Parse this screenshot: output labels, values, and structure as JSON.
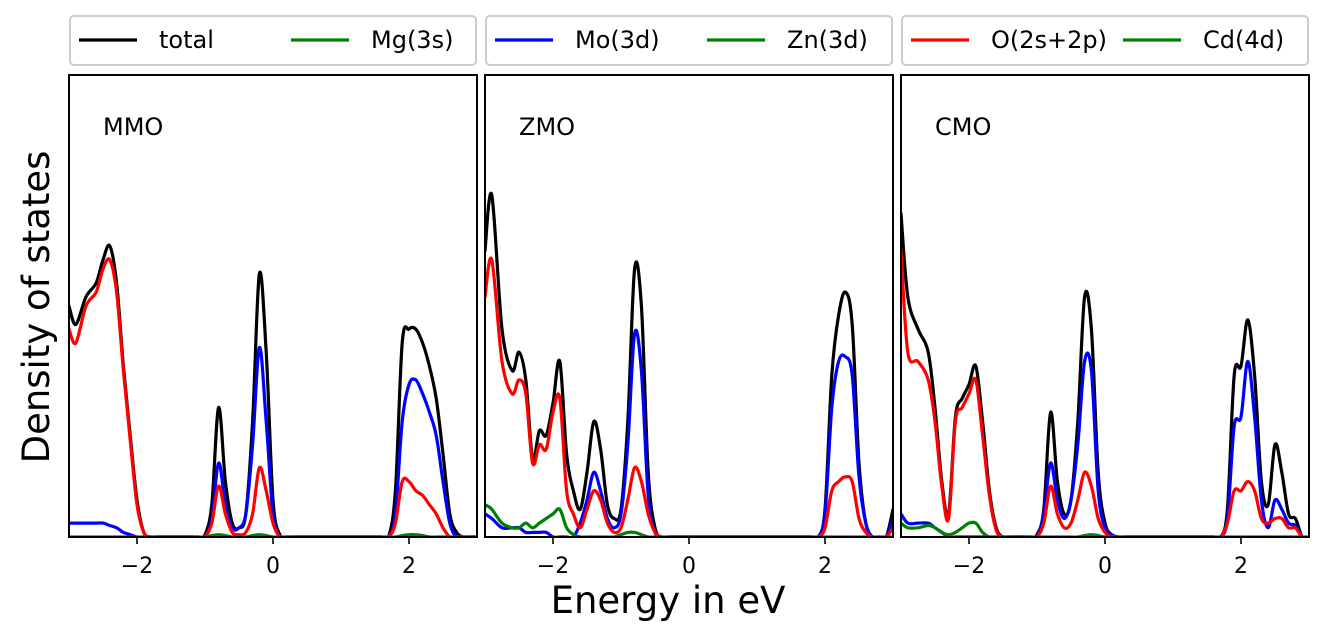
{
  "chart_data": {
    "type": "line",
    "xlabel": "Energy in eV",
    "ylabel": "Density of states",
    "xlim": [
      -3,
      3
    ],
    "ylim": [
      0,
      1
    ],
    "xticks": [
      -2,
      0,
      2
    ],
    "x_tick_labels": [
      "−2",
      "0",
      "2"
    ],
    "x": [
      -3.0,
      -2.9,
      -2.75,
      -2.6,
      -2.5,
      -2.4,
      -2.3,
      -2.2,
      -2.1,
      -2.0,
      -1.9,
      -1.8,
      -1.7,
      -1.6,
      -1.5,
      -1.4,
      -1.3,
      -1.2,
      -1.1,
      -1.0,
      -0.9,
      -0.8,
      -0.7,
      -0.6,
      -0.5,
      -0.4,
      -0.3,
      -0.2,
      -0.1,
      0.0,
      0.1,
      0.2,
      0.3,
      0.4,
      0.5,
      0.6,
      0.7,
      0.8,
      0.9,
      1.0,
      1.1,
      1.2,
      1.3,
      1.4,
      1.5,
      1.6,
      1.7,
      1.8,
      1.9,
      2.0,
      2.1,
      2.2,
      2.3,
      2.4,
      2.5,
      2.6,
      2.7,
      2.8,
      2.9,
      3.0
    ],
    "panels": [
      {
        "label": "MMO",
        "legend": [
          "total",
          "Mg(3s)"
        ],
        "series": [
          {
            "name": "total",
            "color": "#000000",
            "values": [
              0.5,
              0.46,
              0.52,
              0.55,
              0.6,
              0.63,
              0.55,
              0.37,
              0.22,
              0.08,
              0.01,
              0.0,
              0.0,
              0.0,
              0.0,
              0.0,
              0.0,
              0.0,
              0.0,
              0.005,
              0.07,
              0.28,
              0.12,
              0.03,
              0.02,
              0.05,
              0.25,
              0.57,
              0.4,
              0.08,
              0.005,
              0.0,
              0.0,
              0.0,
              0.0,
              0.0,
              0.0,
              0.0,
              0.0,
              0.0,
              0.0,
              0.0,
              0.0,
              0.0,
              0.0,
              0.0,
              0.0,
              0.1,
              0.42,
              0.45,
              0.45,
              0.42,
              0.37,
              0.3,
              0.18,
              0.05,
              0.01,
              0.0,
              0.0,
              0.0
            ]
          },
          {
            "name": "Mo(3d)",
            "color": "#0000ff",
            "values": [
              0.03,
              0.03,
              0.03,
              0.03,
              0.03,
              0.025,
              0.02,
              0.01,
              0.005,
              0.0,
              0.0,
              0.0,
              0.0,
              0.0,
              0.0,
              0.0,
              0.0,
              0.0,
              0.0,
              0.0,
              0.04,
              0.16,
              0.07,
              0.02,
              0.02,
              0.05,
              0.2,
              0.41,
              0.25,
              0.05,
              0.0,
              0.0,
              0.0,
              0.0,
              0.0,
              0.0,
              0.0,
              0.0,
              0.0,
              0.0,
              0.0,
              0.0,
              0.0,
              0.0,
              0.0,
              0.0,
              0.0,
              0.05,
              0.25,
              0.33,
              0.34,
              0.31,
              0.27,
              0.22,
              0.12,
              0.03,
              0.0,
              0.0,
              0.0,
              0.0
            ]
          },
          {
            "name": "O(2s+2p)",
            "color": "#ff0000",
            "values": [
              0.45,
              0.42,
              0.5,
              0.53,
              0.58,
              0.6,
              0.53,
              0.36,
              0.21,
              0.07,
              0.01,
              0.0,
              0.0,
              0.0,
              0.0,
              0.0,
              0.0,
              0.0,
              0.0,
              0.0,
              0.03,
              0.11,
              0.05,
              0.01,
              0.005,
              0.01,
              0.05,
              0.15,
              0.1,
              0.03,
              0.0,
              0.0,
              0.0,
              0.0,
              0.0,
              0.0,
              0.0,
              0.0,
              0.0,
              0.0,
              0.0,
              0.0,
              0.0,
              0.0,
              0.0,
              0.0,
              0.0,
              0.03,
              0.12,
              0.12,
              0.1,
              0.09,
              0.07,
              0.05,
              0.02,
              0.0,
              0.0,
              0.0,
              0.0,
              0.0
            ]
          },
          {
            "name": "Mg(3s)",
            "color": "#008000",
            "values": [
              0.0,
              0.0,
              0.0,
              0.0,
              0.0,
              0.0,
              0.0,
              0.0,
              0.0,
              0.0,
              0.0,
              0.0,
              0.0,
              0.0,
              0.0,
              0.0,
              0.0,
              0.0,
              0.0,
              0.0,
              0.003,
              0.005,
              0.003,
              0.0,
              0.0,
              0.0,
              0.003,
              0.005,
              0.003,
              0.0,
              0.0,
              0.0,
              0.0,
              0.0,
              0.0,
              0.0,
              0.0,
              0.0,
              0.0,
              0.0,
              0.0,
              0.0,
              0.0,
              0.0,
              0.0,
              0.0,
              0.0,
              0.0,
              0.003,
              0.005,
              0.005,
              0.003,
              0.0,
              0.0,
              0.0,
              0.0,
              0.0,
              0.0,
              0.0,
              0.0
            ]
          }
        ]
      },
      {
        "label": "ZMO",
        "legend": [
          "Mo(3d)",
          "Zn(3d)"
        ],
        "series": [
          {
            "name": "total",
            "color": "#000000",
            "values": [
              0.62,
              0.74,
              0.45,
              0.36,
              0.4,
              0.34,
              0.17,
              0.23,
              0.22,
              0.29,
              0.38,
              0.18,
              0.1,
              0.06,
              0.14,
              0.25,
              0.19,
              0.07,
              0.04,
              0.06,
              0.25,
              0.58,
              0.5,
              0.14,
              0.02,
              0.0,
              0.0,
              0.0,
              0.0,
              0.0,
              0.0,
              0.0,
              0.0,
              0.0,
              0.0,
              0.0,
              0.0,
              0.0,
              0.0,
              0.0,
              0.0,
              0.0,
              0.0,
              0.0,
              0.0,
              0.0,
              0.0,
              0.0,
              0.0,
              0.06,
              0.35,
              0.48,
              0.53,
              0.46,
              0.16,
              0.03,
              0.0,
              0.0,
              0.0,
              0.06
            ]
          },
          {
            "name": "Mo(3d)",
            "color": "#0000ff",
            "values": [
              0.05,
              0.04,
              0.02,
              0.02,
              0.02,
              0.01,
              0.01,
              0.01,
              0.01,
              0.0,
              0.0,
              0.0,
              0.0,
              0.03,
              0.08,
              0.14,
              0.1,
              0.04,
              0.02,
              0.05,
              0.2,
              0.44,
              0.36,
              0.09,
              0.01,
              0.0,
              0.0,
              0.0,
              0.0,
              0.0,
              0.0,
              0.0,
              0.0,
              0.0,
              0.0,
              0.0,
              0.0,
              0.0,
              0.0,
              0.0,
              0.0,
              0.0,
              0.0,
              0.0,
              0.0,
              0.0,
              0.0,
              0.0,
              0.0,
              0.05,
              0.28,
              0.38,
              0.39,
              0.35,
              0.13,
              0.03,
              0.0,
              0.0,
              0.0,
              0.04
            ]
          },
          {
            "name": "O(2s+2p)",
            "color": "#ff0000",
            "values": [
              0.52,
              0.6,
              0.38,
              0.31,
              0.34,
              0.31,
              0.16,
              0.2,
              0.19,
              0.27,
              0.3,
              0.1,
              0.05,
              0.02,
              0.06,
              0.1,
              0.08,
              0.03,
              0.01,
              0.02,
              0.08,
              0.15,
              0.12,
              0.05,
              0.01,
              0.0,
              0.0,
              0.0,
              0.0,
              0.0,
              0.0,
              0.0,
              0.0,
              0.0,
              0.0,
              0.0,
              0.0,
              0.0,
              0.0,
              0.0,
              0.0,
              0.0,
              0.0,
              0.0,
              0.0,
              0.0,
              0.0,
              0.0,
              0.0,
              0.02,
              0.1,
              0.12,
              0.13,
              0.12,
              0.04,
              0.01,
              0.0,
              0.0,
              0.0,
              0.02
            ]
          },
          {
            "name": "Zn(3d)",
            "color": "#008000",
            "values": [
              0.07,
              0.06,
              0.03,
              0.02,
              0.02,
              0.03,
              0.02,
              0.03,
              0.04,
              0.05,
              0.06,
              0.02,
              0.005,
              0.0,
              0.0,
              0.0,
              0.0,
              0.0,
              0.0,
              0.005,
              0.01,
              0.01,
              0.005,
              0.0,
              0.0,
              0.0,
              0.0,
              0.0,
              0.0,
              0.0,
              0.0,
              0.0,
              0.0,
              0.0,
              0.0,
              0.0,
              0.0,
              0.0,
              0.0,
              0.0,
              0.0,
              0.0,
              0.0,
              0.0,
              0.0,
              0.0,
              0.0,
              0.0,
              0.0,
              0.0,
              0.0,
              0.0,
              0.0,
              0.0,
              0.0,
              0.0,
              0.0,
              0.0,
              0.0,
              0.0
            ]
          }
        ]
      },
      {
        "label": "CMO",
        "legend": [
          "O(2s+2p)",
          "Cd(4d)"
        ],
        "series": [
          {
            "name": "total",
            "color": "#000000",
            "values": [
              0.7,
              0.52,
              0.45,
              0.4,
              0.28,
              0.12,
              0.05,
              0.26,
              0.3,
              0.33,
              0.37,
              0.25,
              0.1,
              0.02,
              0.0,
              0.0,
              0.0,
              0.0,
              0.0,
              0.005,
              0.06,
              0.27,
              0.12,
              0.05,
              0.08,
              0.25,
              0.52,
              0.45,
              0.14,
              0.03,
              0.005,
              0.0,
              0.0,
              0.0,
              0.0,
              0.0,
              0.0,
              0.0,
              0.0,
              0.0,
              0.0,
              0.0,
              0.0,
              0.0,
              0.0,
              0.0,
              0.0,
              0.06,
              0.35,
              0.37,
              0.47,
              0.35,
              0.12,
              0.07,
              0.2,
              0.14,
              0.05,
              0.04,
              0.0,
              0.0
            ]
          },
          {
            "name": "Mo(3d)",
            "color": "#0000ff",
            "values": [
              0.05,
              0.03,
              0.03,
              0.03,
              0.02,
              0.01,
              0.0,
              0.0,
              0.0,
              0.0,
              0.0,
              0.0,
              0.0,
              0.0,
              0.0,
              0.0,
              0.0,
              0.0,
              0.0,
              0.0,
              0.05,
              0.16,
              0.08,
              0.04,
              0.08,
              0.2,
              0.38,
              0.36,
              0.1,
              0.02,
              0.005,
              0.0,
              0.0,
              0.0,
              0.0,
              0.0,
              0.0,
              0.0,
              0.0,
              0.0,
              0.0,
              0.0,
              0.0,
              0.0,
              0.0,
              0.0,
              0.0,
              0.04,
              0.24,
              0.26,
              0.38,
              0.26,
              0.08,
              0.02,
              0.08,
              0.06,
              0.03,
              0.025,
              0.0,
              0.0
            ]
          },
          {
            "name": "O(2s+2p)",
            "color": "#ff0000",
            "values": [
              0.62,
              0.4,
              0.38,
              0.34,
              0.25,
              0.11,
              0.04,
              0.25,
              0.28,
              0.31,
              0.34,
              0.22,
              0.09,
              0.015,
              0.0,
              0.0,
              0.0,
              0.0,
              0.0,
              0.0,
              0.03,
              0.11,
              0.05,
              0.02,
              0.03,
              0.08,
              0.14,
              0.11,
              0.04,
              0.01,
              0.0,
              0.0,
              0.0,
              0.0,
              0.0,
              0.0,
              0.0,
              0.0,
              0.0,
              0.0,
              0.0,
              0.0,
              0.0,
              0.0,
              0.0,
              0.0,
              0.0,
              0.03,
              0.1,
              0.1,
              0.12,
              0.1,
              0.04,
              0.03,
              0.04,
              0.04,
              0.02,
              0.02,
              0.0,
              0.0
            ]
          },
          {
            "name": "Cd(4d)",
            "color": "#008000",
            "values": [
              0.03,
              0.02,
              0.02,
              0.025,
              0.02,
              0.01,
              0.005,
              0.01,
              0.02,
              0.03,
              0.03,
              0.01,
              0.0,
              0.0,
              0.0,
              0.0,
              0.0,
              0.0,
              0.0,
              0.0,
              0.0,
              0.0,
              0.0,
              0.0,
              0.0,
              0.0,
              0.003,
              0.005,
              0.003,
              0.0,
              0.0,
              0.0,
              0.0,
              0.0,
              0.0,
              0.0,
              0.0,
              0.0,
              0.0,
              0.0,
              0.0,
              0.0,
              0.0,
              0.0,
              0.0,
              0.0,
              0.0,
              0.0,
              0.0,
              0.0,
              0.0,
              0.0,
              0.0,
              0.0,
              0.0,
              0.0,
              0.0,
              0.0,
              0.0,
              0.0
            ]
          }
        ]
      }
    ]
  }
}
